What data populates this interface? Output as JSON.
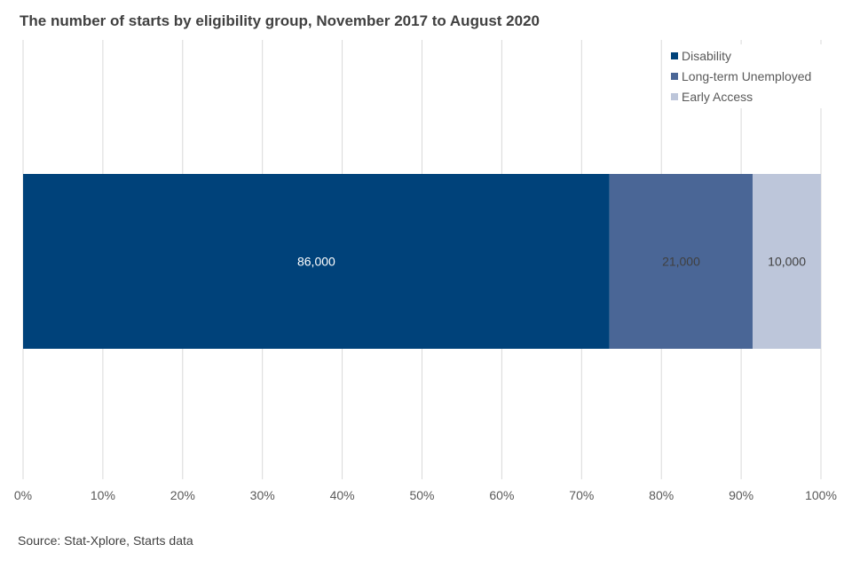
{
  "chart_data": {
    "type": "bar",
    "orientation": "horizontal",
    "stacked": "100%",
    "title": "The number of starts by eligibility group, November 2017 to August 2020",
    "source": "Source: Stat-Xplore, Starts data",
    "xlim": [
      0,
      100
    ],
    "x_ticks": [
      "0%",
      "10%",
      "20%",
      "30%",
      "40%",
      "50%",
      "60%",
      "70%",
      "80%",
      "90%",
      "100%"
    ],
    "grid": true,
    "legend_position": "top-right",
    "series": [
      {
        "name": "Disability",
        "value": 86000,
        "label": "86,000",
        "color": "#00427A",
        "label_color": "#FFFFFF"
      },
      {
        "name": "Long-term Unemployed",
        "value": 21000,
        "label": "21,000",
        "color": "#4A6696",
        "label_color": "#404040"
      },
      {
        "name": "Early Access",
        "value": 10000,
        "label": "10,000",
        "color": "#BDC6DA",
        "label_color": "#404040"
      }
    ]
  }
}
